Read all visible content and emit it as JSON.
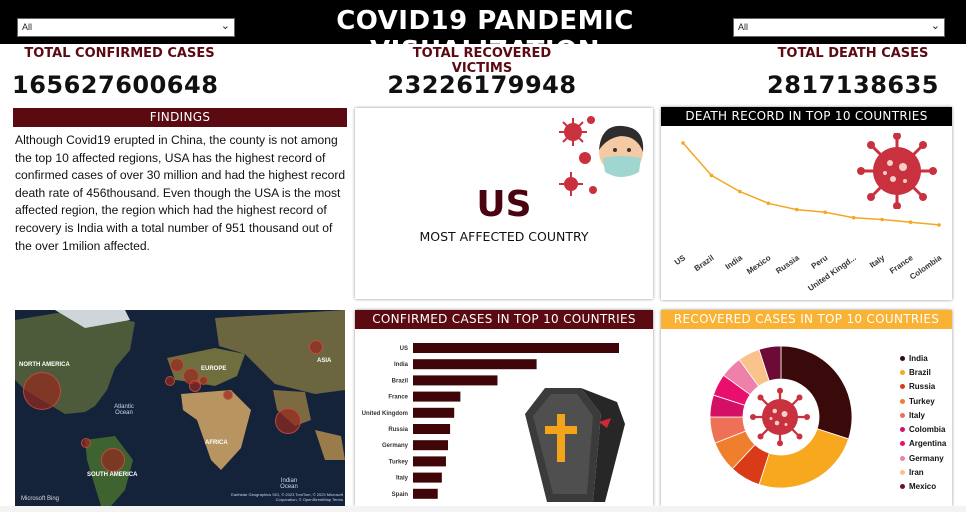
{
  "header": {
    "title": "COVID19 PANDEMIC VISUALIZATION",
    "left_filter": "All",
    "right_filter": "All"
  },
  "kpis": [
    {
      "label": "TOTAL CONFIRMED CASES",
      "value": "165627600648"
    },
    {
      "label": "TOTAL RECOVERED VICTIMS",
      "value": "23226179948"
    },
    {
      "label": "TOTAL DEATH CASES",
      "value": "2817138635"
    }
  ],
  "findings": {
    "title": "FINDINGS",
    "text": "Although Covid19 erupted in China, the county is not among the top 10 affected regions, USA has the highest record of confirmed cases of over 30 million and had the highest record death rate of 456thousand.   Even though the USA is the most affected region, the region which had the highest record of recovery is India with a total number of 951 thousand out of the over 1milion affected."
  },
  "most_affected": {
    "country": "US",
    "label": "MOST AFFECTED COUNTRY"
  },
  "map": {
    "labels": [
      "NORTH AMERICA",
      "EUROPE",
      "ASIA",
      "AFRICA",
      "SOUTH AMERICA"
    ],
    "oceans": [
      "Atlantic Ocean",
      "Indian Ocean"
    ],
    "attribution": "Microsoft Bing",
    "copyright": "Earthstar Geographics SIO, © 2023 TomTom, © 2023 Microsoft Corporation, © OpenStreetMap  Terms"
  },
  "colors": {
    "dark_red": "#5b0a12",
    "chart_line": "#f5a623",
    "bar": "#3f0508",
    "orange_header": "#f9b233"
  },
  "chart_data": [
    {
      "type": "line",
      "title": "DEATH RECORD IN TOP 10 COUNTRIES",
      "categories": [
        "US",
        "Brazil",
        "India",
        "Mexico",
        "Russia",
        "Peru",
        "United Kingd...",
        "Italy",
        "France",
        "Colombia"
      ],
      "values": [
        100,
        64,
        46,
        33,
        26,
        23,
        17,
        15,
        12,
        9
      ],
      "grid": false,
      "legend": "none"
    },
    {
      "type": "bar",
      "orientation": "horizontal",
      "title": "CONFIRMED CASES IN TOP 10 COUNTRIES",
      "categories": [
        "US",
        "India",
        "Brazil",
        "France",
        "United Kingdom",
        "Russia",
        "Germany",
        "Turkey",
        "Italy",
        "Spain"
      ],
      "values": [
        100,
        60,
        41,
        23,
        20,
        18,
        17,
        16,
        14,
        12
      ],
      "grid": false,
      "legend": "none"
    },
    {
      "type": "pie",
      "donut": true,
      "title": "RECOVERED CASES IN TOP 10 COUNTRIES",
      "categories": [
        "India",
        "Brazil",
        "Russia",
        "Turkey",
        "Italy",
        "Colombia",
        "Argentina",
        "Germany",
        "Iran",
        "Mexico"
      ],
      "values": [
        30,
        25,
        7,
        7,
        6,
        5,
        5,
        5,
        5,
        5
      ],
      "colors": [
        "#3a0a0a",
        "#f7a81e",
        "#d93a17",
        "#f07f2d",
        "#ee7157",
        "#d40f66",
        "#e8106c",
        "#ee80a9",
        "#f8c28a",
        "#6d0a35"
      ],
      "legend": "right"
    }
  ]
}
